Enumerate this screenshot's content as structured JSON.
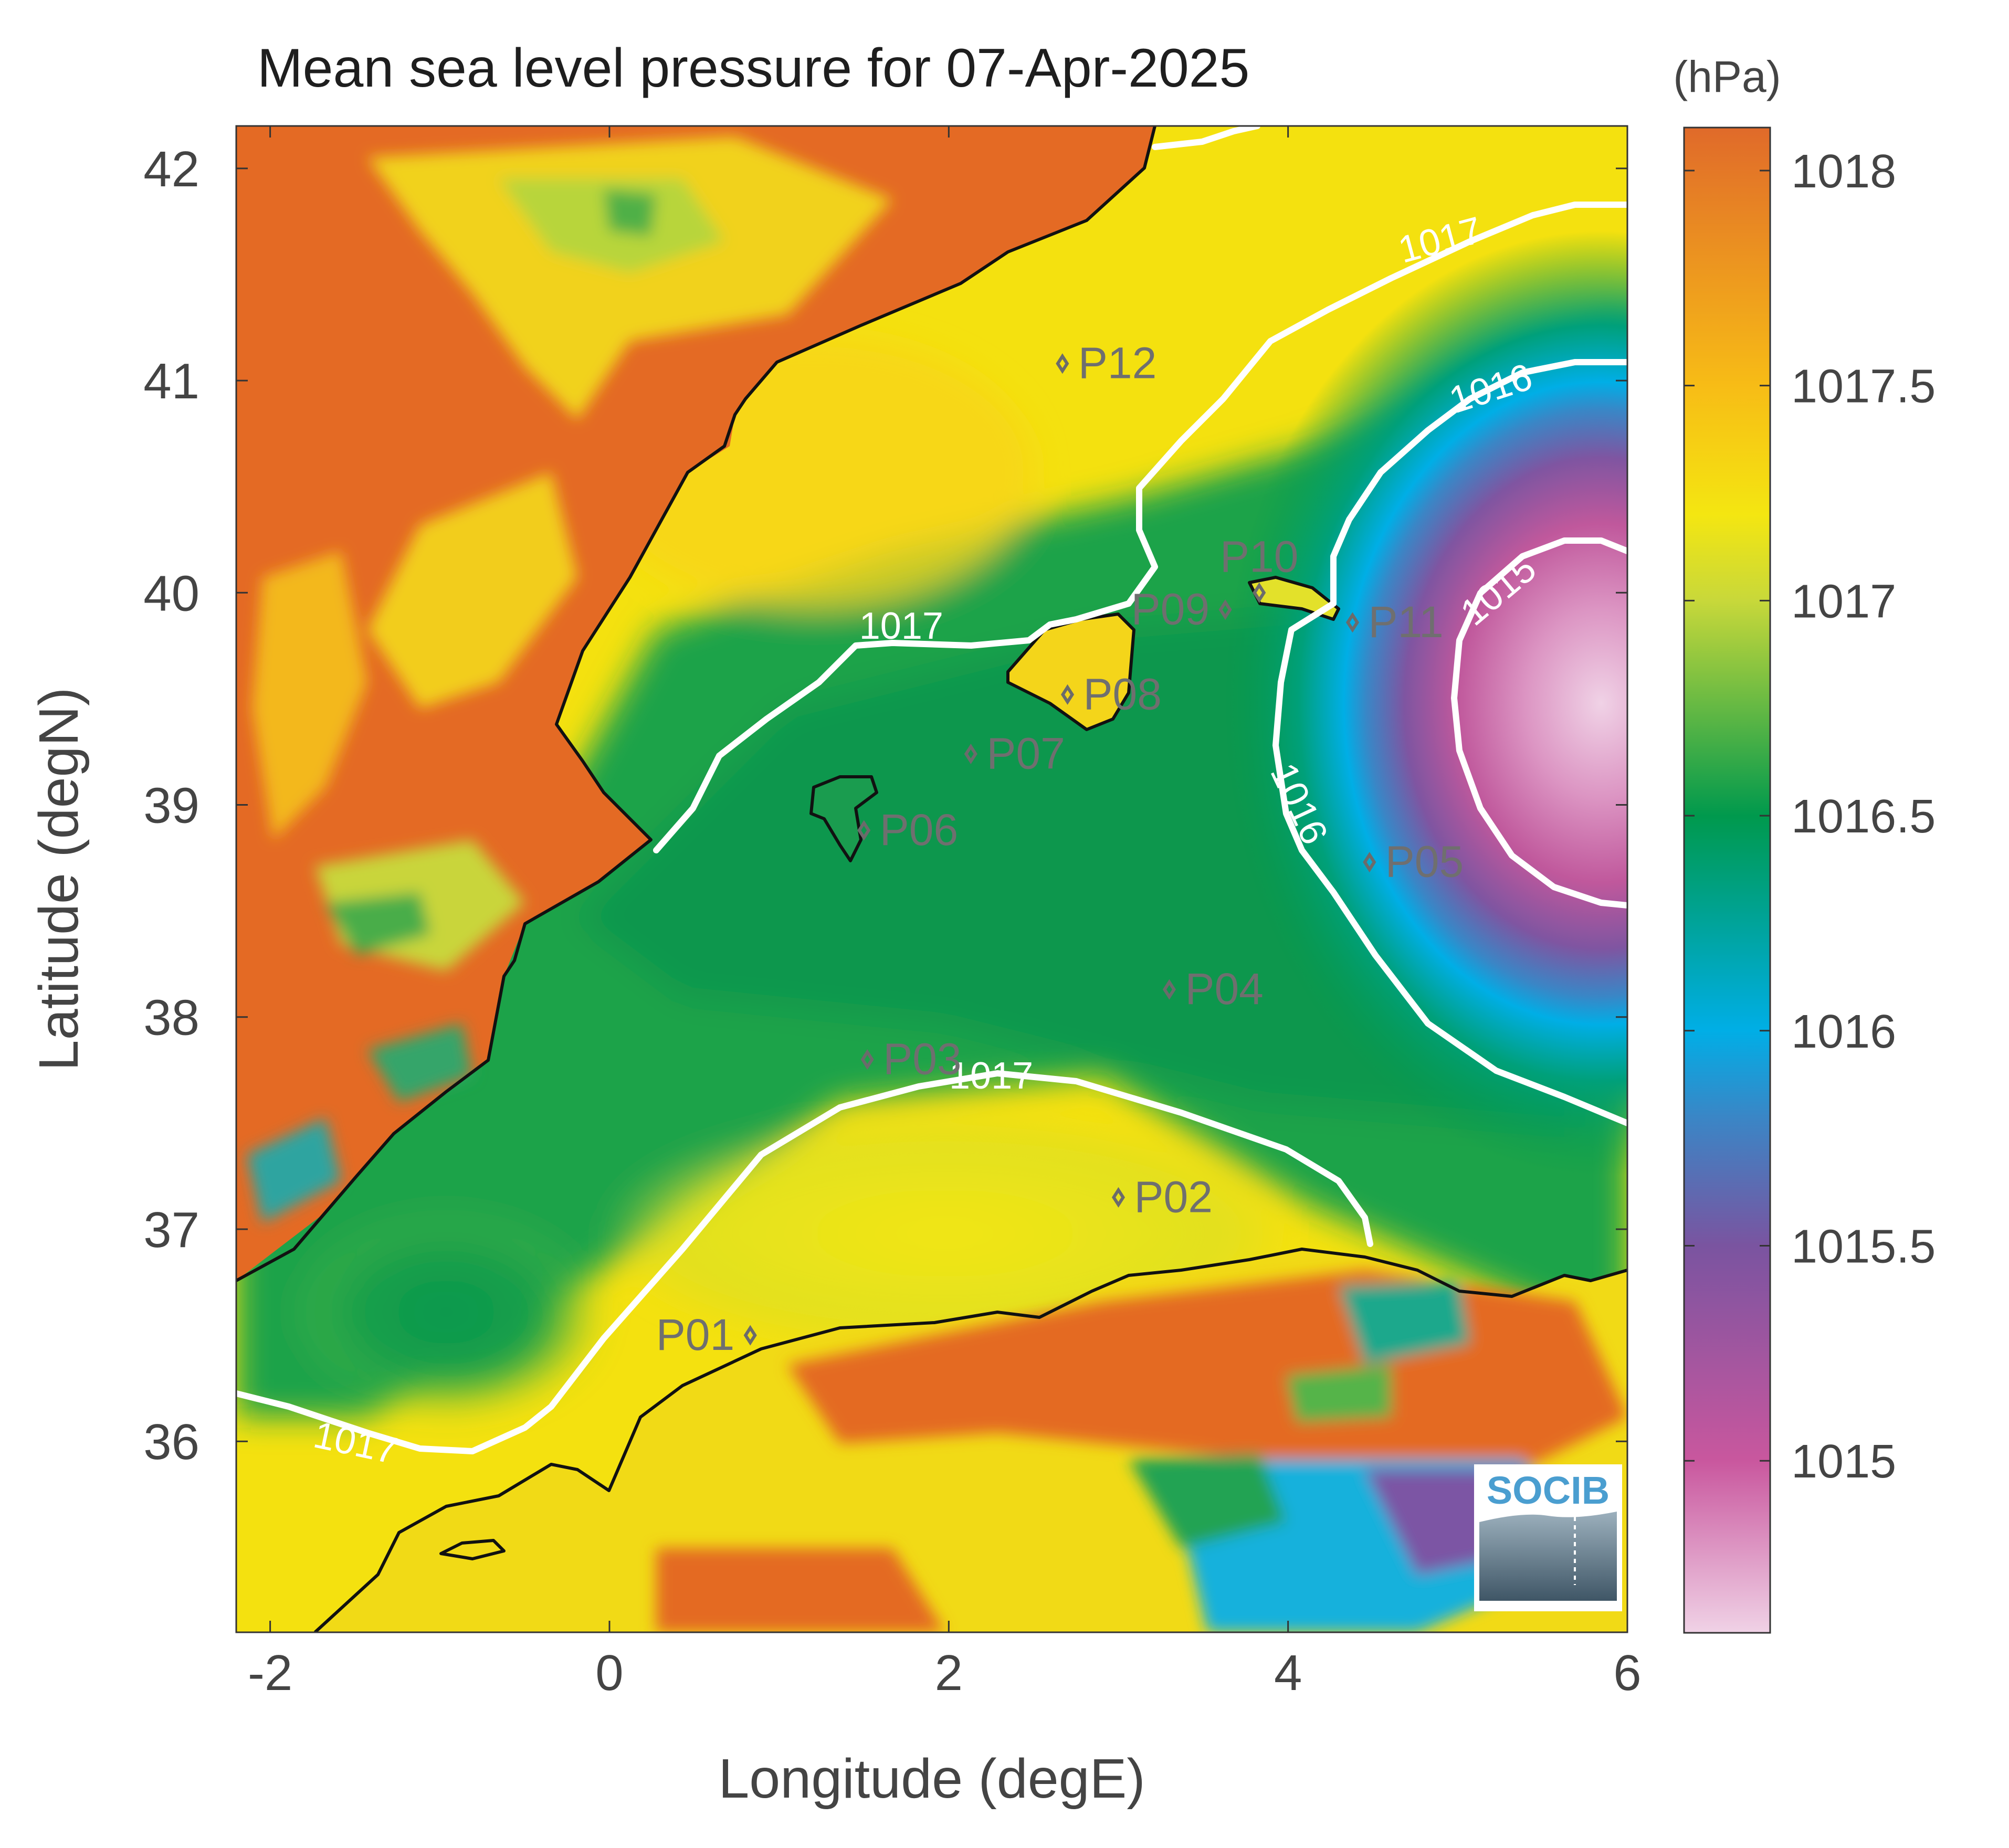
{
  "chart_data": {
    "type": "heatmap",
    "title": "Mean sea level pressure for 07-Apr-2025",
    "xlabel": "Longitude (degE)",
    "ylabel": "Latitude (degN)",
    "xlim": [
      -2.2,
      6.0
    ],
    "ylim": [
      35.1,
      42.2
    ],
    "x_ticks": [
      -2,
      0,
      2,
      4,
      6
    ],
    "x_tick_labels": [
      "-2",
      "0",
      "2",
      "4",
      "6"
    ],
    "y_ticks": [
      36,
      37,
      38,
      39,
      40,
      41,
      42
    ],
    "y_tick_labels": [
      "36",
      "37",
      "38",
      "39",
      "40",
      "41",
      "42"
    ],
    "colorbar": {
      "unit_label": "(hPa)",
      "range": [
        1014.6,
        1018.1
      ],
      "ticks": [
        1015,
        1015.5,
        1016,
        1016.5,
        1017,
        1017.5,
        1018
      ],
      "tick_labels": [
        "1015",
        "1015.5",
        "1016",
        "1016.5",
        "1017",
        "1017.5",
        "1018"
      ],
      "stops": [
        {
          "value": 1014.6,
          "color": "#f0d2e6"
        },
        {
          "value": 1015.0,
          "color": "#c9579e"
        },
        {
          "value": 1015.5,
          "color": "#7a54a0"
        },
        {
          "value": 1015.8,
          "color": "#3a86c6"
        },
        {
          "value": 1016.0,
          "color": "#00aee6"
        },
        {
          "value": 1016.5,
          "color": "#00994d"
        },
        {
          "value": 1017.0,
          "color": "#c8d83a"
        },
        {
          "value": 1017.2,
          "color": "#f4e611"
        },
        {
          "value": 1017.5,
          "color": "#f7bc16"
        },
        {
          "value": 1018.1,
          "color": "#e06a2a"
        }
      ]
    },
    "low_pressure_center": {
      "lon": 5.8,
      "lat": 39.5,
      "value": 1014.6
    },
    "contour_labels": [
      {
        "text": "1017",
        "lon": 4.9,
        "lat": 41.65,
        "rot": -15
      },
      {
        "text": "1016",
        "lon": 5.2,
        "lat": 40.95,
        "rot": -18
      },
      {
        "text": "1015",
        "lon": 5.25,
        "lat": 40.0,
        "rot": -40
      },
      {
        "text": "1016",
        "lon": 4.05,
        "lat": 39.0,
        "rot": 65
      },
      {
        "text": "1017",
        "lon": 1.72,
        "lat": 39.83,
        "rot": 0
      },
      {
        "text": "1017",
        "lon": 2.25,
        "lat": 37.71,
        "rot": 0
      },
      {
        "text": "1017",
        "lon": -1.5,
        "lat": 35.98,
        "rot": 12
      }
    ],
    "stations": [
      {
        "name": "P01",
        "lon": 0.83,
        "lat": 36.5,
        "label_side": "left"
      },
      {
        "name": "P02",
        "lon": 3.0,
        "lat": 37.15,
        "label_side": "right"
      },
      {
        "name": "P03",
        "lon": 1.52,
        "lat": 37.8,
        "label_side": "right"
      },
      {
        "name": "P04",
        "lon": 3.3,
        "lat": 38.13,
        "label_side": "right"
      },
      {
        "name": "P05",
        "lon": 4.48,
        "lat": 38.73,
        "label_side": "right"
      },
      {
        "name": "P06",
        "lon": 1.5,
        "lat": 38.88,
        "label_side": "right"
      },
      {
        "name": "P07",
        "lon": 2.13,
        "lat": 39.24,
        "label_side": "right"
      },
      {
        "name": "P08",
        "lon": 2.7,
        "lat": 39.52,
        "label_side": "right"
      },
      {
        "name": "P09",
        "lon": 3.63,
        "lat": 39.92,
        "label_side": "left"
      },
      {
        "name": "P10",
        "lon": 3.83,
        "lat": 40.0,
        "label_side": "above"
      },
      {
        "name": "P11",
        "lon": 4.38,
        "lat": 39.86,
        "label_side": "right"
      },
      {
        "name": "P12",
        "lon": 2.67,
        "lat": 41.08,
        "label_side": "right"
      }
    ]
  },
  "logo": {
    "text": "SOCIB"
  }
}
